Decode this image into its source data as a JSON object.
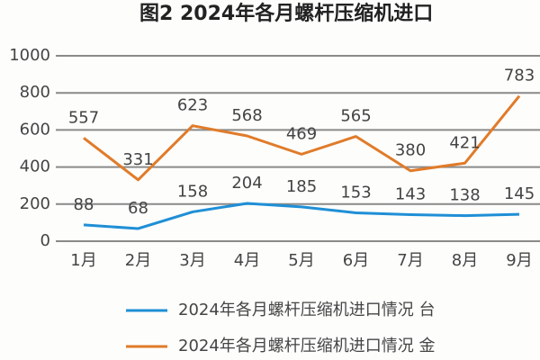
{
  "chart_data": {
    "type": "line",
    "title": "图2 2024年各月螺杆压缩机进口",
    "categories": [
      "1月",
      "2月",
      "3月",
      "4月",
      "5月",
      "6月",
      "7月",
      "8月",
      "9月"
    ],
    "series": [
      {
        "name": "2024年各月螺杆压缩机进口情况 台",
        "color": "#1f8fd6",
        "values": [
          88,
          68,
          158,
          204,
          185,
          153,
          143,
          138,
          145
        ]
      },
      {
        "name": "2024年各月螺杆压缩机进口情况 金",
        "color": "#e07b2a",
        "values": [
          557,
          331,
          623,
          568,
          469,
          565,
          380,
          421,
          783
        ]
      }
    ],
    "ylim": [
      0,
      1000
    ],
    "yticks": [
      0,
      200,
      400,
      600,
      800,
      1000
    ],
    "grid": true
  }
}
